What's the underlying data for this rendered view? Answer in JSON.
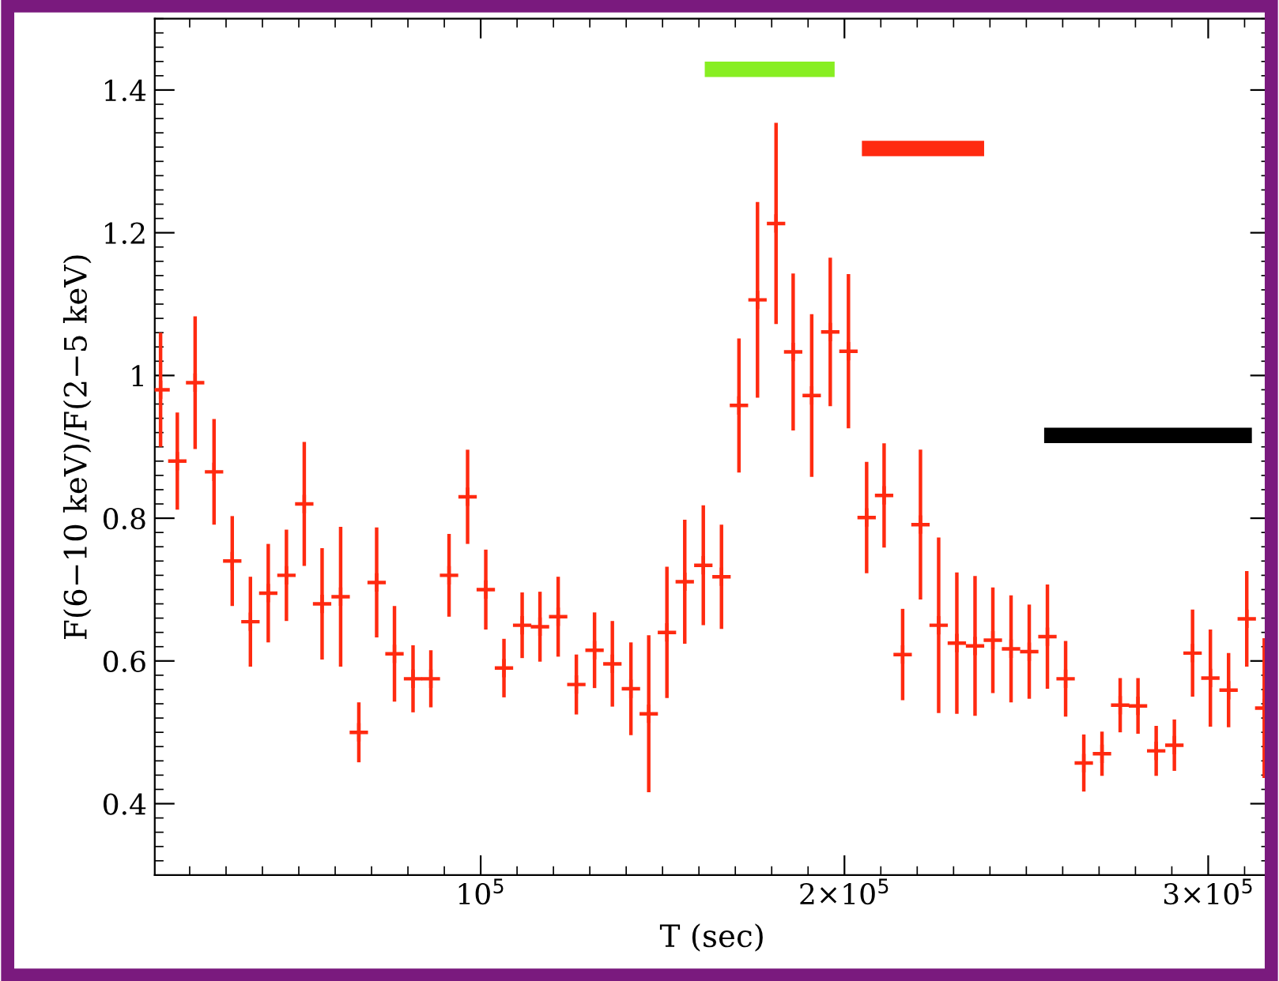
{
  "chart_data": {
    "type": "scatter",
    "xlabel": "T (sec)",
    "ylabel": "F(6−10 keV)/F(2−5 keV)",
    "xlim": [
      10400,
      317000
    ],
    "ylim": [
      0.3,
      1.5
    ],
    "xticks": [
      {
        "value": 100000,
        "label": "10$^{5}$"
      },
      {
        "value": 200000,
        "label": "2×10$^{5}$"
      },
      {
        "value": 300000,
        "label": "3×10$^{5}$"
      }
    ],
    "yticks": [
      0.4,
      0.6,
      0.8,
      {
        "value": 1,
        "label": "1"
      },
      1.2,
      1.4
    ],
    "grid": false,
    "series": [
      {
        "color": "#ff2a10",
        "marker": "cross",
        "x": [
          12000,
          16600,
          21500,
          26700,
          31700,
          36700,
          41600,
          46600,
          51500,
          56400,
          61500,
          66500,
          71400,
          76300,
          81400,
          86300,
          91300,
          96400,
          101400,
          106400,
          111400,
          116300,
          121300,
          126300,
          131300,
          136200,
          141300,
          146200,
          151200,
          156100,
          161200,
          166200,
          171000,
          176100,
          181200,
          185900,
          191000,
          196100,
          201100,
          206100,
          210900,
          216000,
          220900,
          225900,
          230900,
          235900,
          240800,
          245800,
          250800,
          255800,
          260800,
          265800,
          270800,
          275800,
          280700,
          285700,
          290700,
          295700,
          300600,
          305600,
          310600,
          315400
        ],
        "values": [
          0.98,
          0.88,
          0.99,
          0.865,
          0.74,
          0.655,
          0.695,
          0.72,
          0.82,
          0.68,
          0.69,
          0.5,
          0.71,
          0.61,
          0.575,
          0.575,
          0.72,
          0.83,
          0.7,
          0.59,
          0.65,
          0.648,
          0.662,
          0.567,
          0.615,
          0.596,
          0.561,
          0.526,
          0.64,
          0.711,
          0.734,
          0.718,
          0.958,
          1.106,
          1.213,
          1.033,
          0.972,
          1.061,
          1.034,
          0.801,
          0.832,
          0.609,
          0.791,
          0.65,
          0.625,
          0.621,
          0.629,
          0.617,
          0.613,
          0.634,
          0.575,
          0.457,
          0.47,
          0.538,
          0.537,
          0.474,
          0.482,
          0.611,
          0.576,
          0.559,
          0.659,
          0.534
        ],
        "errors": [
          0.08,
          0.068,
          0.093,
          0.074,
          0.063,
          0.063,
          0.069,
          0.064,
          0.087,
          0.078,
          0.098,
          0.042,
          0.077,
          0.067,
          0.047,
          0.04,
          0.058,
          0.066,
          0.056,
          0.041,
          0.046,
          0.049,
          0.056,
          0.042,
          0.053,
          0.06,
          0.065,
          0.11,
          0.092,
          0.087,
          0.084,
          0.073,
          0.094,
          0.137,
          0.141,
          0.11,
          0.114,
          0.104,
          0.108,
          0.078,
          0.073,
          0.064,
          0.105,
          0.123,
          0.099,
          0.098,
          0.074,
          0.075,
          0.066,
          0.073,
          0.053,
          0.04,
          0.031,
          0.038,
          0.039,
          0.035,
          0.036,
          0.061,
          0.068,
          0.052,
          0.067,
          0.098
        ]
      },
      {
        "type": "line",
        "color": "#88ee22",
        "x": [
          161600,
          197300
        ],
        "values": [
          1.429,
          1.429
        ],
        "marker": "none"
      },
      {
        "type": "line",
        "color": "#ff2a10",
        "x": [
          204800,
          238400
        ],
        "values": [
          1.318,
          1.318
        ],
        "marker": "none"
      },
      {
        "type": "line",
        "color": "#000000",
        "x": [
          254900,
          312000
        ],
        "values": [
          0.916,
          0.916
        ],
        "marker": "none"
      }
    ]
  }
}
